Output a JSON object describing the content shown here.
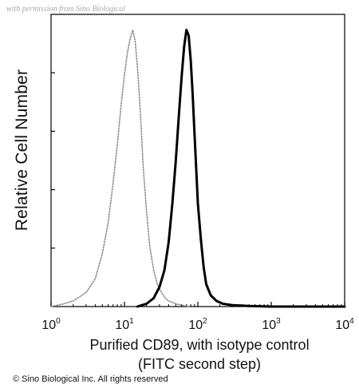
{
  "watermark": "with permission from Sino Biological",
  "copyright": "© Sino Biological Inc. All rights reserved",
  "chart_data": {
    "type": "area",
    "title": "",
    "xlabel_line1": "Purified CD89, with isotype control",
    "xlabel_line2": "(FITC second step)",
    "ylabel": "Relative Cell Number",
    "xscale": "log",
    "xlim": [
      1,
      10000
    ],
    "ylim": [
      0,
      1
    ],
    "x_ticks": [
      {
        "value": 1,
        "base": "10",
        "exp": "0"
      },
      {
        "value": 10,
        "base": "10",
        "exp": "1"
      },
      {
        "value": 100,
        "base": "10",
        "exp": "2"
      },
      {
        "value": 1000,
        "base": "10",
        "exp": "3"
      },
      {
        "value": 10000,
        "base": "10",
        "exp": "4"
      }
    ],
    "y_tick_labels": "none",
    "grid": false,
    "legend": "none",
    "series": [
      {
        "role": "isotype control",
        "style": "dotted",
        "color": "#8c8c8c",
        "x": [
          1,
          1.5,
          2,
          3,
          4,
          5,
          6,
          7,
          8,
          9,
          10,
          11,
          12,
          13,
          14,
          15,
          16,
          17,
          18,
          20,
          22,
          25,
          28,
          32,
          36,
          40,
          45,
          50,
          60,
          80
        ],
        "y": [
          0.0,
          0.01,
          0.02,
          0.05,
          0.1,
          0.19,
          0.3,
          0.44,
          0.58,
          0.72,
          0.83,
          0.91,
          0.96,
          0.99,
          0.95,
          0.86,
          0.75,
          0.63,
          0.5,
          0.34,
          0.22,
          0.13,
          0.08,
          0.05,
          0.03,
          0.02,
          0.015,
          0.01,
          0.005,
          0.0
        ]
      },
      {
        "role": "Purified CD89",
        "style": "solid",
        "color": "#000000",
        "x": [
          15,
          20,
          25,
          30,
          35,
          40,
          45,
          50,
          55,
          60,
          65,
          70,
          75,
          80,
          85,
          90,
          95,
          100,
          110,
          120,
          130,
          150,
          180,
          220,
          300,
          500,
          1000,
          10000
        ],
        "y": [
          0.0,
          0.01,
          0.03,
          0.07,
          0.13,
          0.23,
          0.37,
          0.52,
          0.68,
          0.82,
          0.93,
          0.99,
          0.97,
          0.88,
          0.76,
          0.62,
          0.49,
          0.37,
          0.24,
          0.14,
          0.08,
          0.04,
          0.02,
          0.01,
          0.005,
          0.002,
          0.0,
          0.0
        ]
      }
    ]
  }
}
